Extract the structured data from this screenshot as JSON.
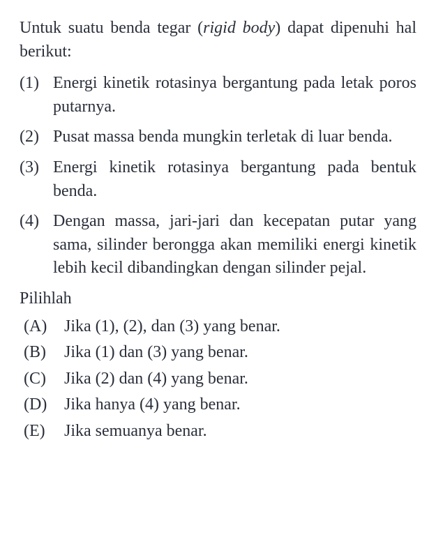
{
  "intro_pre": "Untuk suatu benda tegar (",
  "intro_ital": "rigid body",
  "intro_post": ") dapat dipenuhi hal berikut:",
  "statements": [
    {
      "marker": "(1)",
      "text": "Energi kinetik rotasinya bergantung pada letak poros putarnya."
    },
    {
      "marker": "(2)",
      "text": "Pusat massa benda mungkin terletak di luar benda."
    },
    {
      "marker": "(3)",
      "text": "Energi kinetik rotasinya bergantung pada bentuk benda."
    },
    {
      "marker": "(4)",
      "text": "Dengan massa, jari-jari dan kecepatan putar yang sama, silinder berongga akan memiliki energi kinetik lebih kecil dibandingkan dengan silinder pejal."
    }
  ],
  "prompt": "Pilihlah",
  "options": [
    {
      "marker": "(A)",
      "text": "Jika (1), (2), dan (3) yang benar."
    },
    {
      "marker": "(B)",
      "text": "Jika (1) dan (3) yang benar."
    },
    {
      "marker": "(C)",
      "text": "Jika (2) dan (4) yang benar."
    },
    {
      "marker": "(D)",
      "text": "Jika hanya (4) yang benar."
    },
    {
      "marker": "(E)",
      "text": "Jika semuanya benar."
    }
  ]
}
